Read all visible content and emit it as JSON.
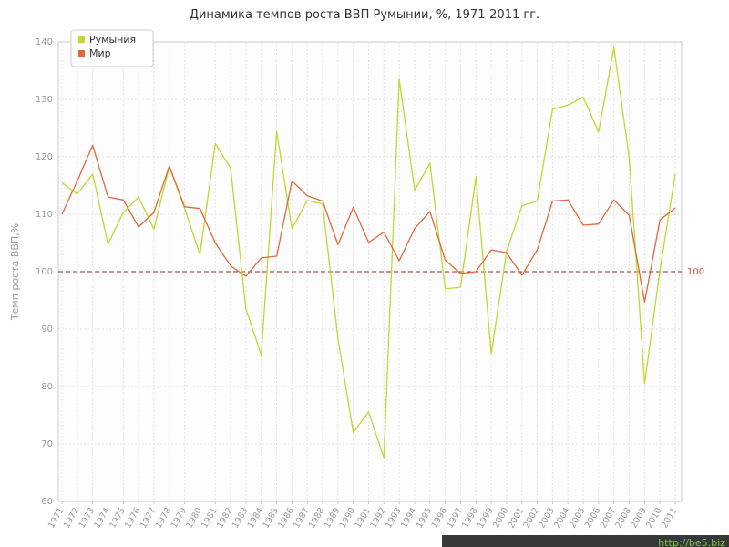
{
  "title": "Динамика темпов роста ВВП Румынии, %, 1971-2011 гг.",
  "watermark": "http://be5.biz",
  "colors": {
    "romania_line": "#c3d631",
    "world_line": "#e2683c",
    "reference_line": "#8a3324",
    "reference_label": "#cc4a33",
    "grid": "#e3e3e3",
    "plot_border": "#c9c9c9",
    "plot_bg": "#fdfdfd",
    "tick_text": "#999999",
    "title_text": "#333333",
    "watermark_bg": "#383838",
    "watermark_text": "#76d21e"
  },
  "chart_data": {
    "type": "line",
    "title": "Динамика темпов роста ВВП Румынии, %, 1971-2011 гг.",
    "xlabel": "",
    "ylabel": "Темп роста ВВП,%",
    "ylim": [
      60,
      140
    ],
    "yticks": [
      60,
      70,
      80,
      90,
      100,
      110,
      120,
      130,
      140
    ],
    "grid": true,
    "legend_position": "top-left",
    "reference_line": {
      "value": 100,
      "label": "100",
      "style": "dashed"
    },
    "x": [
      1971,
      1972,
      1973,
      1974,
      1975,
      1976,
      1977,
      1978,
      1979,
      1980,
      1981,
      1982,
      1983,
      1984,
      1985,
      1986,
      1987,
      1988,
      1989,
      1990,
      1991,
      1992,
      1993,
      1994,
      1995,
      1996,
      1997,
      1998,
      1999,
      2000,
      2001,
      2002,
      2003,
      2004,
      2005,
      2006,
      2007,
      2008,
      2009,
      2010,
      2011
    ],
    "series": [
      {
        "name": "Румыния",
        "color": "#c3d631",
        "values": [
          115.5,
          113.5,
          117,
          104.8,
          110.3,
          113,
          107.4,
          118.3,
          111,
          103,
          122.3,
          118,
          93.5,
          85.5,
          124.4,
          107.5,
          112.4,
          111.8,
          88.3,
          72,
          75.6,
          67.6,
          133.5,
          114.2,
          118.9,
          97,
          97.3,
          116.5,
          85.7,
          103.5,
          111.5,
          112.3,
          128.3,
          129,
          130.4,
          124.3,
          139,
          119.8,
          80.5,
          100.3,
          117
        ]
      },
      {
        "name": "Мир",
        "color": "#e2683c",
        "values": [
          110,
          115.8,
          122,
          113,
          112.5,
          107.8,
          110.3,
          118.4,
          111.3,
          111,
          105,
          101,
          99.2,
          102.4,
          102.7,
          115.8,
          113.2,
          112.3,
          104.7,
          111.2,
          105.1,
          106.9,
          101.9,
          107.5,
          110.5,
          102,
          99.7,
          100,
          103.8,
          103.3,
          99.4,
          103.8,
          112.3,
          112.5,
          108.1,
          108.3,
          112.5,
          109.8,
          94.7,
          109,
          111.1
        ]
      }
    ]
  }
}
